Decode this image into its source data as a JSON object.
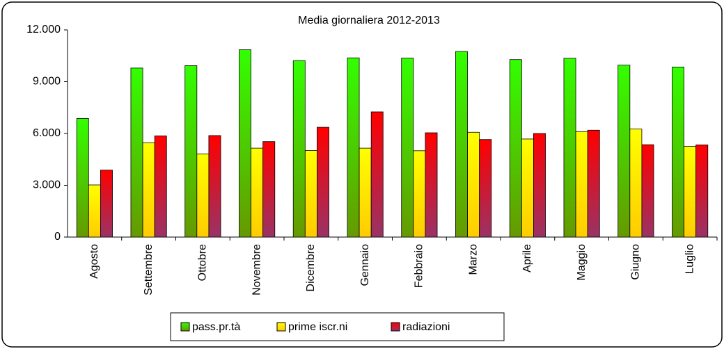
{
  "chart_data": {
    "type": "bar",
    "title": "Media giornaliera 2012-2013",
    "categories": [
      "Agosto",
      "Settembre",
      "Ottobre",
      "Novembre",
      "Dicembre",
      "Gennaio",
      "Febbraio",
      "Marzo",
      "Aprile",
      "Maggio",
      "Giugno",
      "Luglio"
    ],
    "series": [
      {
        "name": "pass.pr.tà",
        "color": "#33ff00",
        "values": [
          6870,
          9790,
          9930,
          10850,
          10220,
          10380,
          10370,
          10750,
          10280,
          10360,
          9960,
          9850
        ]
      },
      {
        "name": "prime iscr.ni",
        "color": "#ffff00",
        "values": [
          3020,
          5460,
          4820,
          5150,
          5010,
          5150,
          5000,
          6070,
          5680,
          6110,
          6260,
          5250
        ]
      },
      {
        "name": "radiazioni",
        "color": "#ff0000",
        "values": [
          3880,
          5860,
          5880,
          5530,
          6360,
          7250,
          6040,
          5650,
          6000,
          6190,
          5350,
          5340
        ]
      }
    ],
    "ylim": [
      0,
      12000
    ],
    "yticks": [
      0,
      {
        "value": 3000,
        "label": "3.000"
      },
      {
        "value": 6000,
        "label": "6.000"
      },
      {
        "value": 9000,
        "label": "9.000"
      },
      {
        "value": 12000,
        "label": "12.000"
      }
    ],
    "grid": false,
    "legend": "bottom"
  }
}
